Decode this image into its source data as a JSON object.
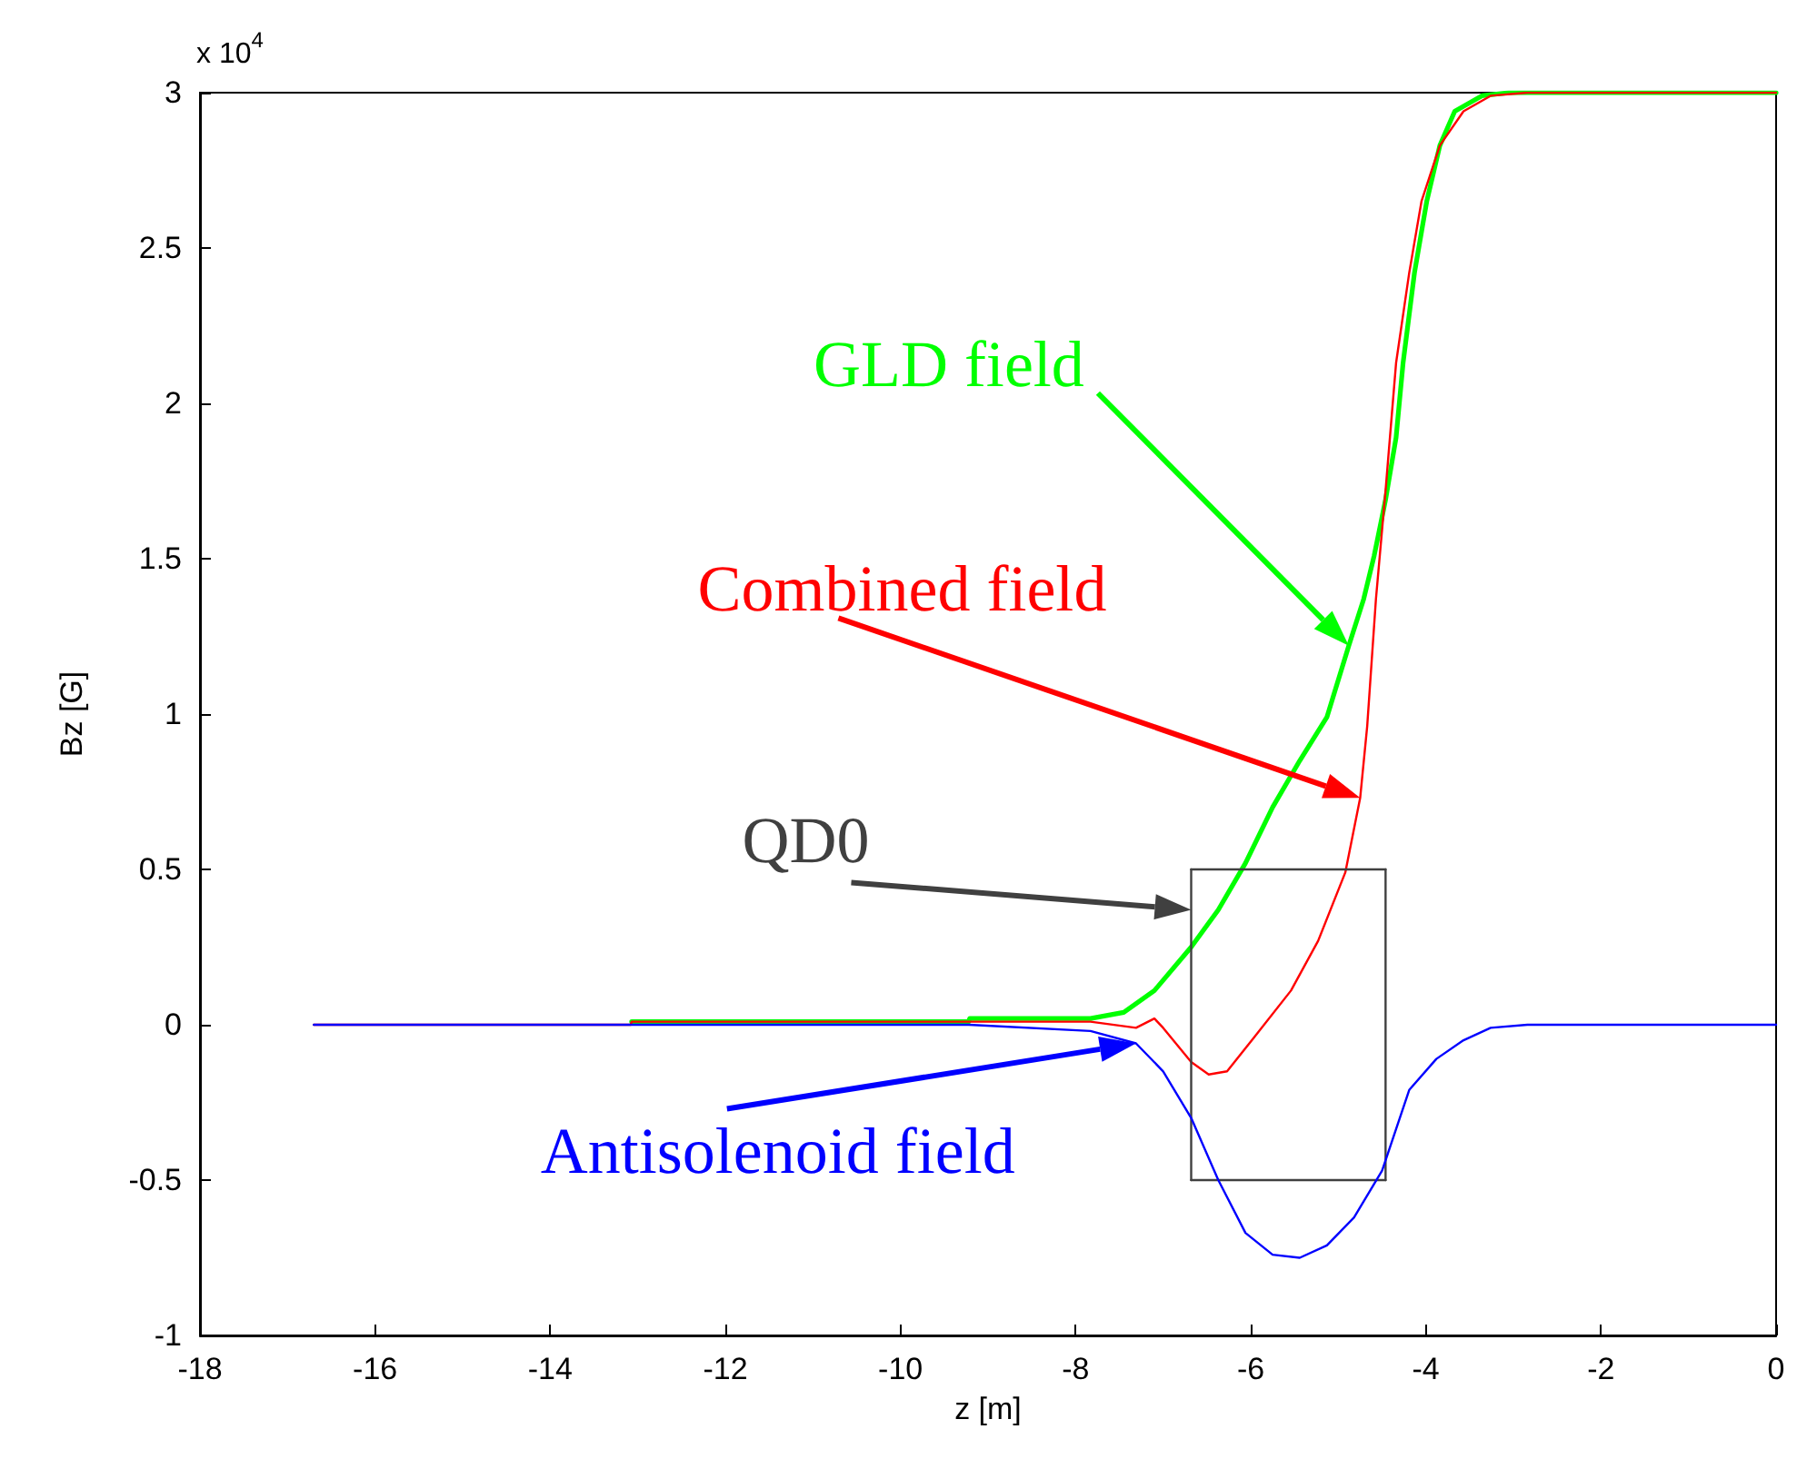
{
  "chart_data": {
    "type": "line",
    "xlabel": "z [m]",
    "ylabel": "Bz [G]",
    "xlim": [
      -18,
      0
    ],
    "xticks": [
      -18,
      -16,
      -14,
      -12,
      -10,
      -8,
      -6,
      -4,
      -2,
      0
    ],
    "ylim": [
      -1,
      3
    ],
    "yticks": [
      -1,
      -0.5,
      0,
      0.5,
      1,
      1.5,
      2,
      2.5,
      3
    ],
    "marker": "none",
    "line_style": "solid",
    "series": [
      {
        "color": "#00ff00",
        "x": [
          -13.07,
          -9.22,
          -9.21,
          -7.83,
          -7.45,
          -7.1,
          -6.68,
          -6.37,
          -6.06,
          -5.75,
          -5.44,
          -5.13,
          -4.88,
          -4.71,
          -4.59,
          -4.46,
          -4.34,
          -4.26,
          -4.13,
          -3.99,
          -3.84,
          -3.67,
          -3.36,
          -3.05,
          0
        ],
        "values": [
          0.01,
          0.01,
          0.02,
          0.02,
          0.04,
          0.11,
          0.25,
          0.37,
          0.52,
          0.7,
          0.85,
          0.99,
          1.22,
          1.37,
          1.51,
          1.69,
          1.89,
          2.13,
          2.42,
          2.65,
          2.83,
          2.94,
          2.99,
          3,
          3
        ]
      },
      {
        "color": "#ff0000",
        "x": [
          -16.7,
          -13.08,
          -13.07,
          -7.83,
          -7.31,
          -7.1,
          -7.0,
          -6.68,
          -6.48,
          -6.27,
          -5.96,
          -5.54,
          -5.23,
          -4.92,
          -4.75,
          -4.67,
          -4.57,
          -4.46,
          -4.34,
          -4.19,
          -4.05,
          -3.84,
          -3.57,
          -3.26,
          -2.84,
          0
        ],
        "values": [
          0,
          0,
          0.01,
          0.01,
          -0.01,
          0.02,
          -0.01,
          -0.12,
          -0.16,
          -0.15,
          -0.04,
          0.11,
          0.27,
          0.49,
          0.73,
          0.96,
          1.37,
          1.72,
          2.13,
          2.42,
          2.65,
          2.83,
          2.94,
          2.99,
          3,
          3
        ]
      },
      {
        "color": "#404040",
        "x": [
          -6.68,
          -6.68
        ],
        "values": [
          -0.5,
          0.5
        ]
      },
      {
        "color": "#404040",
        "x": [
          -6.68,
          -4.46
        ],
        "values": [
          0.5,
          0.5
        ]
      },
      {
        "color": "#404040",
        "x": [
          -4.46,
          -4.46
        ],
        "values": [
          0.5,
          -0.5
        ]
      },
      {
        "color": "#404040",
        "x": [
          -6.68,
          -4.46
        ],
        "values": [
          -0.5,
          -0.5
        ]
      },
      {
        "color": "#0000ff",
        "x": [
          -16.7,
          -9.22,
          -7.83,
          -7.31,
          -7.0,
          -6.68,
          -6.37,
          -6.06,
          -5.75,
          -5.44,
          -5.13,
          -4.82,
          -4.5,
          -4.19,
          -3.88,
          -3.57,
          -3.26,
          -2.84,
          0
        ],
        "values": [
          0,
          0,
          -0.02,
          -0.06,
          -0.15,
          -0.3,
          -0.5,
          -0.67,
          -0.74,
          -0.75,
          -0.71,
          -0.62,
          -0.47,
          -0.21,
          -0.11,
          -0.05,
          -0.01,
          0,
          0
        ]
      }
    ],
    "annotations": [
      "GLD field",
      "Combined field",
      "QD0",
      {
        "text": "Antisolenoid field",
        "x": -7.31,
        "y": -0.06
      },
      "x 10$^{4}$"
    ]
  }
}
